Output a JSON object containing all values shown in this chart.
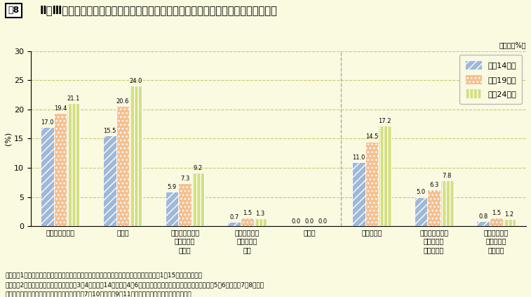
{
  "title_box": "図8",
  "title_main": "Ⅱ・Ⅲ種試験・一般職試験採用者における役職者に占める女性の割合（本省在職者）",
  "ylabel": "(%)",
  "unit_label": "（単位：%）",
  "ylim": [
    0,
    30
  ],
  "yticks": [
    0,
    5,
    10,
    15,
    20,
    25,
    30
  ],
  "categories": [
    "行政職（一）計",
    "係長級",
    "本省課長補佐・\n地方機関の\n課長級",
    "本省課室長・\n地方機関の\n長級",
    "指定職",
    "係長級以上",
    "本省課長補佐・\n地方機関の\n課長級以上",
    "本省課室長・\n地方機関の\n長級以上"
  ],
  "series": [
    {
      "name": "平成14年度",
      "values": [
        17.0,
        15.5,
        5.9,
        0.7,
        0.0,
        11.0,
        5.0,
        0.8
      ],
      "color": "#a0b8d8",
      "hatch": "///"
    },
    {
      "name": "平成19年度",
      "values": [
        19.4,
        20.6,
        7.3,
        1.5,
        0.0,
        14.5,
        6.3,
        1.5
      ],
      "color": "#f5c090",
      "hatch": "..."
    },
    {
      "name": "平成24年度",
      "values": [
        21.1,
        24.0,
        9.2,
        1.3,
        0.0,
        17.2,
        7.8,
        1.2
      ],
      "color": "#d4e080",
      "hatch": "|||"
    }
  ],
  "background_color": "#fafae0",
  "grid_color": "#c8c870",
  "note_line1": "（注）　1　人事院「一般職の国家公務員の任用状況調査報告」より作成しており、各年度1月15日現在の割合。",
  "note_line2": "　　　　2　係長級は行政職俸給表（一）3、4級（平成14年度は旧4～6級）、本省課長補佐・地方機関の課長級は同5、6級（同旧7、8級）、",
  "note_line3": "　　　　　　本省課室長・地方機関の長級は同7～10級（同旧9～11級）の適用者に占める女性の割合。"
}
